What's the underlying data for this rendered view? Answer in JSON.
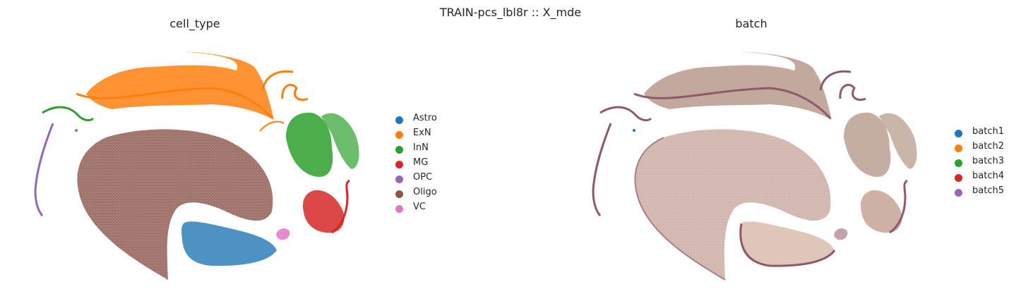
{
  "figure": {
    "suptitle": "TRAIN-pcs_lbl8r :: X_mde"
  },
  "chart_data": [
    {
      "type": "scatter",
      "title": "cell_type",
      "xlabel": "",
      "ylabel": "",
      "grid": false,
      "axes_visible": false,
      "legend_placement": "right",
      "legend": [
        {
          "label": "Astro",
          "color": "#1f77b4"
        },
        {
          "label": "ExN",
          "color": "#ff7f0e"
        },
        {
          "label": "InN",
          "color": "#2ca02c"
        },
        {
          "label": "MG",
          "color": "#d62728"
        },
        {
          "label": "OPC",
          "color": "#9467bd"
        },
        {
          "label": "Oligo",
          "color": "#8c564b"
        },
        {
          "label": "VC",
          "color": "#e377c2"
        }
      ]
    },
    {
      "type": "scatter",
      "title": "batch",
      "xlabel": "",
      "ylabel": "",
      "grid": false,
      "axes_visible": false,
      "legend_placement": "right",
      "legend": [
        {
          "label": "batch1",
          "color": "#1f77b4"
        },
        {
          "label": "batch2",
          "color": "#ff7f0e"
        },
        {
          "label": "batch3",
          "color": "#2ca02c"
        },
        {
          "label": "batch4",
          "color": "#d62728"
        },
        {
          "label": "batch5",
          "color": "#9467bd"
        }
      ]
    }
  ]
}
